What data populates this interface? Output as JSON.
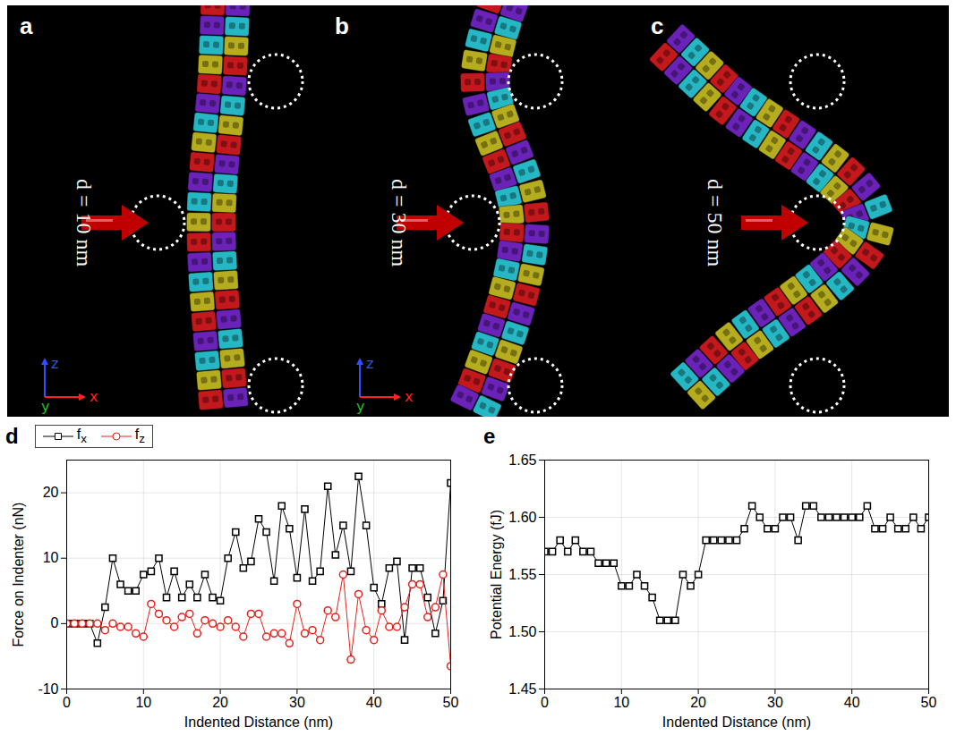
{
  "panels": [
    {
      "letter": "a",
      "label": "d = 10 nm",
      "triad": true
    },
    {
      "letter": "b",
      "label": "d = 30 nm",
      "triad": true
    },
    {
      "letter": "c",
      "label": "d = 50 nm",
      "triad": false
    }
  ],
  "triad_labels": {
    "x": "x",
    "y": "y",
    "z": "z"
  },
  "chart_data": [
    {
      "letter": "d",
      "type": "line",
      "x_label": "Indented Distance (nm)",
      "y_label": "Force on Indenter (nN)",
      "x": [
        0,
        1,
        2,
        3,
        4,
        5,
        6,
        7,
        8,
        9,
        10,
        11,
        12,
        13,
        14,
        15,
        16,
        17,
        18,
        19,
        20,
        21,
        22,
        23,
        24,
        25,
        26,
        27,
        28,
        29,
        30,
        31,
        32,
        33,
        34,
        35,
        36,
        37,
        38,
        39,
        40,
        41,
        42,
        43,
        44,
        45,
        46,
        47,
        48,
        49,
        50
      ],
      "xlim": [
        0,
        50
      ],
      "xticks": [
        0,
        10,
        20,
        30,
        40,
        50
      ],
      "ylim": [
        -10,
        25
      ],
      "yticks": [
        -10,
        0,
        10,
        20
      ],
      "grid": true,
      "legend": "top",
      "series": [
        {
          "name": "fx",
          "color": "#000000",
          "marker": "square",
          "line_style": "solid",
          "values": [
            0,
            0,
            0,
            0,
            -3,
            2.5,
            10,
            6,
            5,
            5,
            7.5,
            8,
            10,
            4,
            8,
            4,
            6,
            4,
            7.5,
            4,
            3.5,
            10,
            14,
            8.5,
            9.5,
            16,
            14,
            6.5,
            18,
            14.5,
            7,
            17.5,
            6.5,
            8,
            21,
            10.5,
            15,
            8,
            22.5,
            15,
            5.5,
            3,
            8.5,
            9.5,
            -2.5,
            8.5,
            8.5,
            4,
            -1.5,
            3.5,
            21.5
          ]
        },
        {
          "name": "fz",
          "color": "#e8201c",
          "marker": "circle",
          "line_style": "solid",
          "values": [
            0,
            0,
            0,
            0,
            0,
            -1,
            0,
            -0.5,
            -0.5,
            -1.5,
            -2,
            3,
            1.5,
            0.5,
            -0.5,
            1,
            1.5,
            -1.5,
            0.5,
            0,
            -0.5,
            0.5,
            -0.5,
            -2,
            1.5,
            1.5,
            -2,
            -1.5,
            -1.5,
            -3,
            3,
            -1.5,
            -1,
            -2.5,
            2,
            1,
            7.5,
            -5.5,
            4.5,
            -1,
            -2.5,
            2,
            -0.5,
            -0.5,
            2.5,
            6,
            6,
            1,
            2.5,
            7.5,
            -6.5
          ]
        }
      ]
    },
    {
      "letter": "e",
      "type": "line",
      "x_label": "Indented Distance (nm)",
      "y_label": "Potential Energy (fJ)",
      "x": [
        0,
        1,
        2,
        3,
        4,
        5,
        6,
        7,
        8,
        9,
        10,
        11,
        12,
        13,
        14,
        15,
        16,
        17,
        18,
        19,
        20,
        21,
        22,
        23,
        24,
        25,
        26,
        27,
        28,
        29,
        30,
        31,
        32,
        33,
        34,
        35,
        36,
        37,
        38,
        39,
        40,
        41,
        42,
        43,
        44,
        45,
        46,
        47,
        48,
        49,
        50
      ],
      "xlim": [
        0,
        50
      ],
      "xticks": [
        0,
        10,
        20,
        30,
        40,
        50
      ],
      "ylim": [
        1.45,
        1.65
      ],
      "yticks": [
        1.45,
        {
          "value": 1.5,
          "label": "1.50"
        },
        1.55,
        {
          "value": 1.6,
          "label": "1.60"
        },
        1.65
      ],
      "grid": true,
      "color": "#000000",
      "marker": "square",
      "line_style": "solid",
      "values": [
        1.57,
        1.57,
        1.58,
        1.57,
        1.58,
        1.57,
        1.57,
        1.56,
        1.56,
        1.56,
        1.54,
        1.54,
        1.55,
        1.54,
        1.53,
        1.51,
        1.51,
        1.51,
        1.55,
        1.54,
        1.55,
        1.58,
        1.58,
        1.58,
        1.58,
        1.58,
        1.59,
        1.61,
        1.6,
        1.59,
        1.59,
        1.6,
        1.6,
        1.58,
        1.61,
        1.61,
        1.6,
        1.6,
        1.6,
        1.6,
        1.6,
        1.6,
        1.61,
        1.59,
        1.59,
        1.6,
        1.59,
        1.59,
        1.6,
        1.59,
        1.6
      ]
    }
  ]
}
